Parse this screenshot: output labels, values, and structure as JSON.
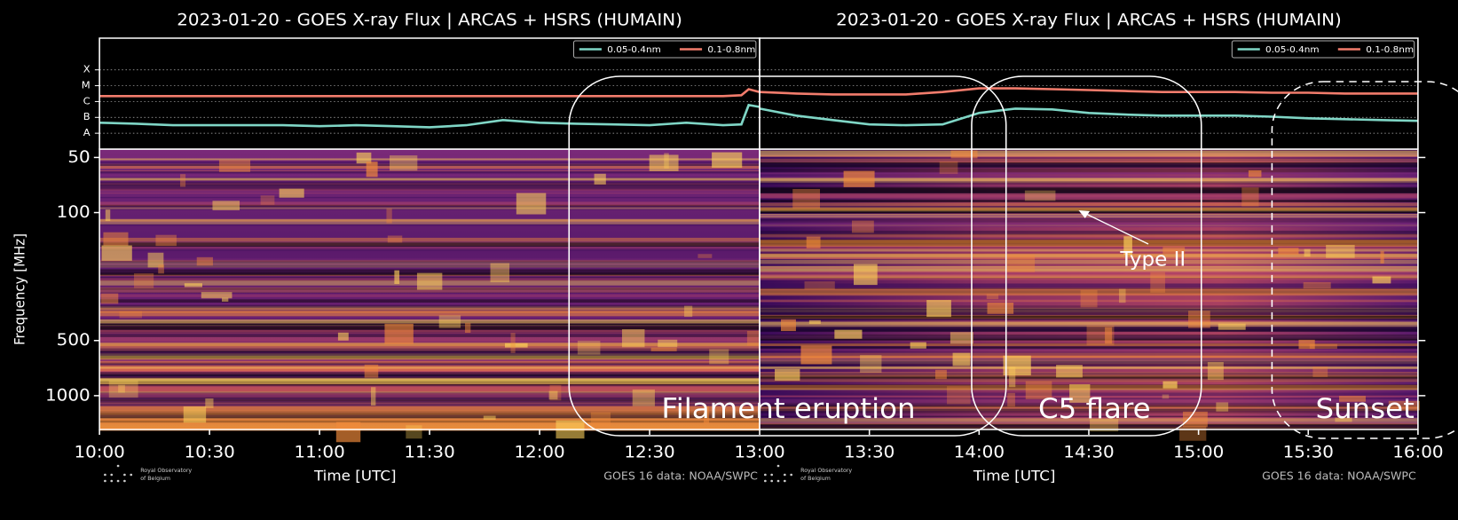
{
  "chart_data": [
    {
      "type": "line",
      "title": "2023-01-20 - GOES X-ray Flux | ARCAS + HSRS (HUMAIN)",
      "log": true,
      "grid": true,
      "legend": "upper right",
      "x": [
        "10:00",
        "10:10",
        "10:20",
        "10:30",
        "10:40",
        "10:50",
        "11:00",
        "11:10",
        "11:20",
        "11:30",
        "11:40",
        "11:50",
        "12:00",
        "12:10",
        "12:20",
        "12:30",
        "12:40",
        "12:50",
        "12:55",
        "12:57",
        "13:00"
      ],
      "xlim": [
        "10:00",
        "13:00"
      ],
      "ylim": [
        1e-09,
        0.01
      ],
      "yticks": [
        {
          "value": 1e-08,
          "label": "A"
        },
        {
          "value": 1e-07,
          "label": "B"
        },
        {
          "value": 1e-06,
          "label": "C"
        },
        {
          "value": 1e-05,
          "label": "M"
        },
        {
          "value": 0.0001,
          "label": "X"
        }
      ],
      "series": [
        {
          "name": "0.05-0.4nm",
          "color": "#7fd6c6",
          "values": [
            4.6e-08,
            4e-08,
            3.2e-08,
            3.2e-08,
            3.2e-08,
            3.2e-08,
            2.8e-08,
            3.2e-08,
            2.8e-08,
            2.4e-08,
            3.2e-08,
            6.8e-08,
            4.6e-08,
            4e-08,
            3.6e-08,
            3.2e-08,
            4.6e-08,
            3.2e-08,
            3.6e-08,
            6e-07,
            4.6e-07
          ]
        },
        {
          "name": "0.1-0.8nm",
          "color": "#f27c6c",
          "values": [
            2.2e-06,
            2.2e-06,
            2.2e-06,
            2.2e-06,
            2.2e-06,
            2.2e-06,
            2.2e-06,
            2.2e-06,
            2.2e-06,
            2.2e-06,
            2.2e-06,
            2.2e-06,
            2.2e-06,
            2.2e-06,
            2.2e-06,
            2.2e-06,
            2.2e-06,
            2.2e-06,
            2.5e-06,
            6e-06,
            4e-06
          ]
        }
      ]
    },
    {
      "type": "line",
      "title": "2023-01-20 - GOES X-ray Flux | ARCAS + HSRS (HUMAIN)",
      "log": true,
      "grid": true,
      "legend": "upper right",
      "x": [
        "13:00",
        "13:10",
        "13:20",
        "13:30",
        "13:40",
        "13:50",
        "14:00",
        "14:10",
        "14:20",
        "14:30",
        "14:40",
        "14:50",
        "15:00",
        "15:10",
        "15:20",
        "15:30",
        "15:40",
        "15:50",
        "16:00"
      ],
      "xlim": [
        "13:00",
        "16:00"
      ],
      "ylim": [
        1e-09,
        0.01
      ],
      "series": [
        {
          "name": "0.05-0.4nm",
          "color": "#7fd6c6",
          "values": [
            3.6e-07,
            1.3e-07,
            6.8e-08,
            3.6e-08,
            3.2e-08,
            3.6e-08,
            1.9e-07,
            3.6e-07,
            3.2e-07,
            1.9e-07,
            1.5e-07,
            1.3e-07,
            1.3e-07,
            1.3e-07,
            1.1e-07,
            8.8e-08,
            7.7e-08,
            6.8e-08,
            6e-08
          ]
        },
        {
          "name": "0.1-0.8nm",
          "color": "#f27c6c",
          "values": [
            4e-06,
            3.2e-06,
            2.8e-06,
            2.8e-06,
            2.8e-06,
            4e-06,
            6.8e-06,
            6.8e-06,
            6e-06,
            5.3e-06,
            4.6e-06,
            4e-06,
            4e-06,
            4e-06,
            3.6e-06,
            3.6e-06,
            3.2e-06,
            3.2e-06,
            3.2e-06
          ]
        }
      ]
    },
    {
      "type": "spectrogram",
      "log": true,
      "ylabel": "Frequency [MHz]",
      "xlabel": "Time [UTC]",
      "xlim": [
        "10:00",
        "13:00"
      ],
      "xticks": [
        "10:00",
        "10:30",
        "11:00",
        "11:30",
        "12:00",
        "12:30",
        "13:00"
      ],
      "ylim": [
        1530,
        45
      ],
      "yticks": [
        50,
        100,
        500,
        1000
      ],
      "source": "GOES 16 data: NOAA/SWPC",
      "logo": [
        "Royal Observatory",
        "of Belgium"
      ],
      "annotations": [
        "Filament eruption"
      ]
    },
    {
      "type": "spectrogram",
      "log": true,
      "xlabel": "Time [UTC]",
      "xlim": [
        "13:00",
        "16:00"
      ],
      "xticks": [
        "13:30",
        "14:00",
        "14:30",
        "15:00",
        "15:30",
        "16:00"
      ],
      "ylim": [
        1530,
        45
      ],
      "source": "GOES 16 data: NOAA/SWPC",
      "logo": [
        "Royal Observatory",
        "of Belgium"
      ],
      "annotations": [
        "C5 flare",
        "Sunset",
        "Type II"
      ]
    }
  ]
}
